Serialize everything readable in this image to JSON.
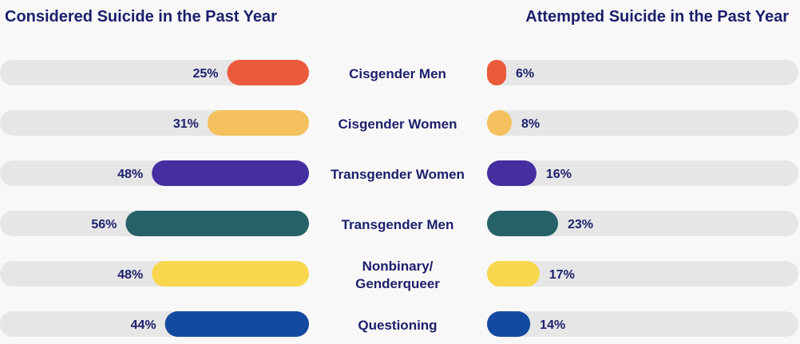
{
  "chart_data": [
    {
      "type": "bar",
      "title": "Considered Suicide in the Past Year",
      "orientation": "horizontal-reversed",
      "categories": [
        "Cisgender Men",
        "Cisgender Women",
        "Transgender Women",
        "Transgender Men",
        "Nonbinary/ Genderqueer",
        "Questioning"
      ],
      "values": [
        25,
        31,
        48,
        56,
        48,
        44
      ],
      "value_labels": [
        "25%",
        "31%",
        "48%",
        "56%",
        "48%",
        "44%"
      ],
      "xlim": [
        0,
        100
      ],
      "unit": "%"
    },
    {
      "type": "bar",
      "title": "Attempted Suicide in the Past Year",
      "orientation": "horizontal",
      "categories": [
        "Cisgender Men",
        "Cisgender Women",
        "Transgender Women",
        "Transgender Men",
        "Nonbinary/ Genderqueer",
        "Questioning"
      ],
      "values": [
        6,
        8,
        16,
        23,
        17,
        14
      ],
      "value_labels": [
        "6%",
        "8%",
        "16%",
        "23%",
        "17%",
        "14%"
      ],
      "xlim": [
        0,
        100
      ],
      "unit": "%"
    }
  ],
  "category_lines": [
    [
      "Cisgender Men"
    ],
    [
      "Cisgender Women"
    ],
    [
      "Transgender Women"
    ],
    [
      "Transgender Men"
    ],
    [
      "Nonbinary/",
      "Genderqueer"
    ],
    [
      "Questioning"
    ]
  ],
  "colors": {
    "track": "#e6e6e6",
    "text": "#1b1f6b",
    "bars": [
      "#ea5a3b",
      "#f4c15e",
      "#452ea0",
      "#276168",
      "#f8d64e",
      "#1449a0"
    ]
  }
}
